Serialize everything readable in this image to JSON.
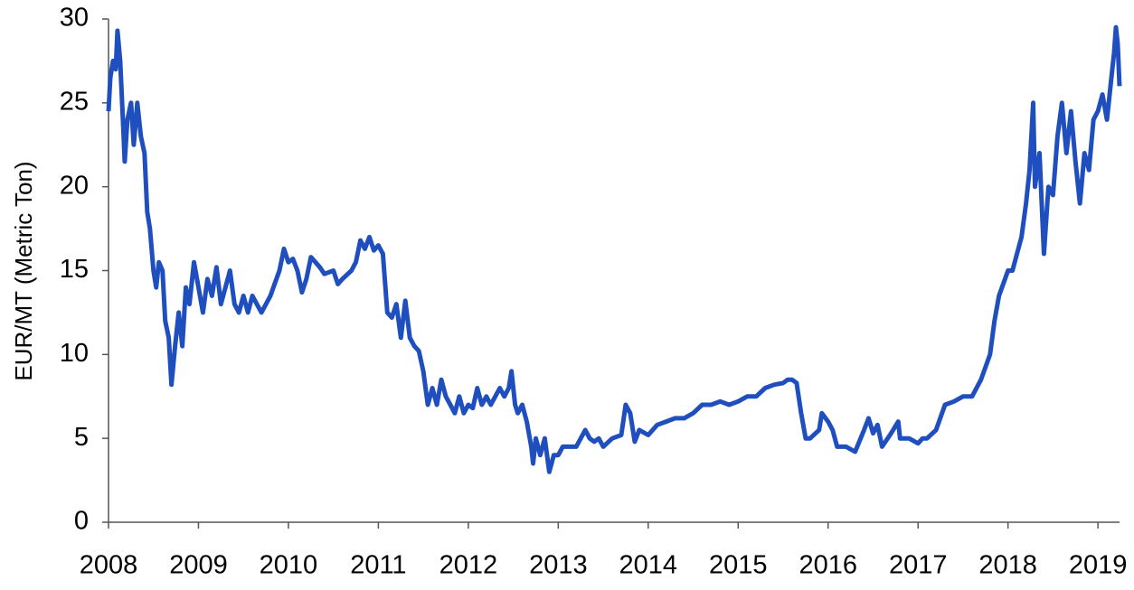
{
  "chart_data": {
    "type": "line",
    "y_label": "EUR/MT (Metric Ton)",
    "xlim": [
      2008,
      2019.24
    ],
    "xticks": [
      2008,
      2009,
      2010,
      2011,
      2012,
      2013,
      2014,
      2015,
      2016,
      2017,
      2018,
      2019
    ],
    "ylim": [
      0,
      30
    ],
    "yticks": [
      0,
      5,
      10,
      15,
      20,
      25,
      30
    ],
    "grid": false,
    "series": [
      {
        "color": "#1f4fbf",
        "x": [
          2008.0,
          2008.02,
          2008.05,
          2008.08,
          2008.1,
          2008.13,
          2008.16,
          2008.18,
          2008.21,
          2008.25,
          2008.28,
          2008.32,
          2008.36,
          2008.4,
          2008.43,
          2008.46,
          2008.5,
          2008.53,
          2008.56,
          2008.6,
          2008.63,
          2008.67,
          2008.7,
          2008.74,
          2008.78,
          2008.82,
          2008.86,
          2008.9,
          2008.95,
          2009.0,
          2009.05,
          2009.1,
          2009.15,
          2009.2,
          2009.25,
          2009.3,
          2009.35,
          2009.4,
          2009.45,
          2009.5,
          2009.55,
          2009.6,
          2009.7,
          2009.8,
          2009.9,
          2009.95,
          2010.0,
          2010.05,
          2010.1,
          2010.15,
          2010.2,
          2010.25,
          2010.3,
          2010.35,
          2010.4,
          2010.5,
          2010.55,
          2010.6,
          2010.7,
          2010.75,
          2010.8,
          2010.85,
          2010.9,
          2010.95,
          2011.0,
          2011.05,
          2011.1,
          2011.15,
          2011.2,
          2011.25,
          2011.3,
          2011.35,
          2011.4,
          2011.45,
          2011.5,
          2011.55,
          2011.6,
          2011.65,
          2011.7,
          2011.75,
          2011.8,
          2011.85,
          2011.9,
          2011.95,
          2012.0,
          2012.05,
          2012.1,
          2012.15,
          2012.2,
          2012.25,
          2012.3,
          2012.35,
          2012.4,
          2012.45,
          2012.48,
          2012.52,
          2012.55,
          2012.6,
          2012.65,
          2012.7,
          2012.72,
          2012.75,
          2012.8,
          2012.85,
          2012.9,
          2012.95,
          2013.0,
          2013.05,
          2013.1,
          2013.2,
          2013.3,
          2013.35,
          2013.4,
          2013.45,
          2013.5,
          2013.6,
          2013.7,
          2013.75,
          2013.8,
          2013.85,
          2013.9,
          2014.0,
          2014.1,
          2014.2,
          2014.3,
          2014.4,
          2014.5,
          2014.6,
          2014.7,
          2014.8,
          2014.9,
          2015.0,
          2015.1,
          2015.2,
          2015.3,
          2015.4,
          2015.5,
          2015.55,
          2015.6,
          2015.65,
          2015.7,
          2015.75,
          2015.8,
          2015.9,
          2015.93,
          2016.0,
          2016.05,
          2016.1,
          2016.2,
          2016.3,
          2016.4,
          2016.45,
          2016.5,
          2016.55,
          2016.6,
          2016.7,
          2016.78,
          2016.8,
          2016.9,
          2017.0,
          2017.05,
          2017.1,
          2017.2,
          2017.3,
          2017.4,
          2017.5,
          2017.6,
          2017.7,
          2017.8,
          2017.85,
          2017.9,
          2018.0,
          2018.05,
          2018.1,
          2018.15,
          2018.2,
          2018.24,
          2018.28,
          2018.3,
          2018.35,
          2018.4,
          2018.45,
          2018.5,
          2018.55,
          2018.6,
          2018.65,
          2018.7,
          2018.75,
          2018.8,
          2018.85,
          2018.9,
          2018.95,
          2019.0,
          2019.05,
          2019.1,
          2019.15,
          2019.18,
          2019.2,
          2019.22,
          2019.24
        ],
        "values": [
          24.5,
          26.5,
          27.5,
          27,
          29.3,
          27.5,
          24,
          21.5,
          24,
          25,
          22.5,
          25,
          23,
          22,
          18.5,
          17.5,
          15,
          14,
          15.5,
          15,
          12,
          11,
          8.2,
          10.5,
          12.5,
          10.5,
          14,
          13,
          15.5,
          14,
          12.5,
          14.5,
          13.5,
          15.2,
          13,
          14,
          15,
          13,
          12.5,
          13.5,
          12.5,
          13.5,
          12.5,
          13.5,
          15,
          16.3,
          15.5,
          15.7,
          15,
          13.7,
          14.5,
          15.8,
          15.5,
          15.2,
          14.8,
          15,
          14.2,
          14.5,
          15,
          15.5,
          16.8,
          16.3,
          17,
          16.2,
          16.5,
          16,
          12.5,
          12.2,
          13,
          11,
          13.2,
          11,
          10.5,
          10.2,
          9,
          7,
          8,
          7,
          8.5,
          7.5,
          7,
          6.5,
          7.5,
          6.5,
          7,
          6.8,
          8,
          7,
          7.5,
          7,
          7.5,
          8,
          7.5,
          8,
          9,
          7,
          6.5,
          7,
          6,
          4.5,
          3.5,
          5,
          4,
          5,
          3,
          4,
          4,
          4.5,
          4.5,
          4.5,
          5.5,
          5,
          4.8,
          5,
          4.5,
          5,
          5.2,
          7,
          6.5,
          4.8,
          5.5,
          5.2,
          5.8,
          6,
          6.2,
          6.2,
          6.5,
          7,
          7,
          7.2,
          7,
          7.2,
          7.5,
          7.5,
          8,
          8.2,
          8.3,
          8.5,
          8.5,
          8.3,
          6.5,
          5,
          5,
          5.5,
          6.5,
          6,
          5.5,
          4.5,
          4.5,
          4.2,
          5.5,
          6.2,
          5.3,
          5.8,
          4.5,
          5.3,
          6,
          5,
          5,
          4.7,
          5,
          5,
          5.5,
          7,
          7.2,
          7.5,
          7.5,
          8.5,
          10,
          12,
          13.5,
          15,
          15,
          16,
          17,
          19,
          21,
          25,
          20,
          22,
          16,
          20,
          19.5,
          23,
          25,
          22,
          24.5,
          21.5,
          19,
          22,
          21,
          24,
          24.5,
          25.5,
          24,
          26.5,
          28,
          29.5,
          28.5,
          26
        ]
      }
    ]
  }
}
